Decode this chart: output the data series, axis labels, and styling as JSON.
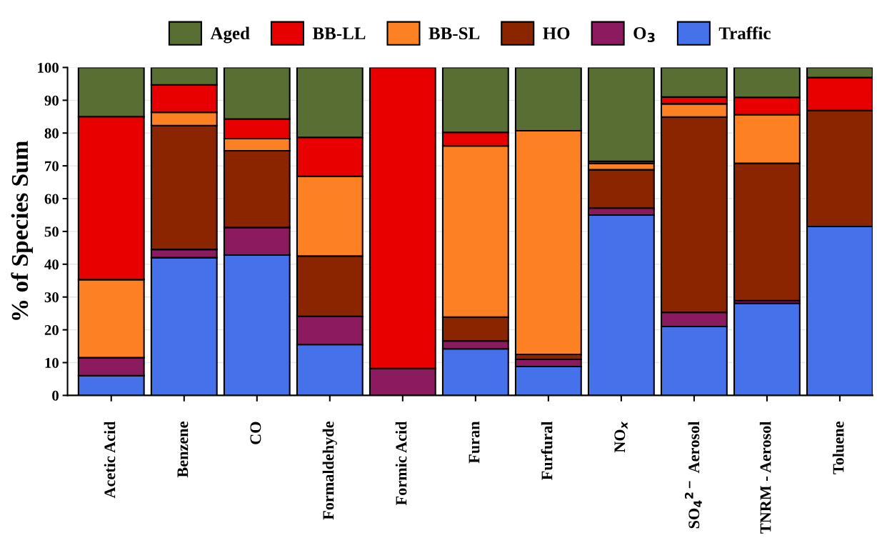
{
  "chart_data": {
    "type": "bar",
    "stacked": true,
    "ylabel": "% of Species Sum",
    "categories": [
      "Acetic Acid",
      "Benzene",
      "CO",
      "Formaldehyde",
      "Formic Acid",
      "Furan",
      "Furfural",
      "NO$_{x}$",
      "SO$_{4}$$^{2−}$ Aerosol",
      "TNRM - Aerosol",
      "Toluene"
    ],
    "series": [
      {
        "name": "Traffic",
        "color": "#4571ea",
        "values": [
          6,
          42,
          42.8,
          15.5,
          0,
          14.2,
          8.8,
          55.0,
          21.0,
          28.1,
          51.5
        ]
      },
      {
        "name": "O$_{3}$",
        "color": "#8b1a5e",
        "values": [
          5.5,
          2.5,
          8.4,
          8.6,
          8.2,
          2.4,
          2.2,
          2.1,
          4.3,
          0.8,
          0
        ]
      },
      {
        "name": "HO",
        "color": "#8a2500",
        "values": [
          0,
          37.8,
          23.4,
          18.4,
          0,
          7.3,
          1.5,
          11.7,
          59.6,
          41.9,
          35.4
        ]
      },
      {
        "name": "BB-SL",
        "color": "#fd8023",
        "values": [
          23.8,
          4,
          3.7,
          24.3,
          0,
          52.2,
          68.2,
          1.9,
          4.0,
          14.8,
          0
        ]
      },
      {
        "name": "BB-LL",
        "color": "#e80000",
        "values": [
          49.7,
          8.4,
          6,
          11.9,
          91.8,
          4.1,
          0,
          0.7,
          2.1,
          5.3,
          10.0
        ]
      },
      {
        "name": "Aged",
        "color": "#586e33",
        "values": [
          15,
          5.3,
          15.7,
          21.3,
          0,
          19.8,
          19.3,
          28.6,
          9.0,
          9.1,
          3.1
        ]
      }
    ],
    "ylim": [
      0,
      100
    ],
    "yticks": [
      0,
      10,
      20,
      30,
      40,
      50,
      60,
      70,
      80,
      90,
      100
    ],
    "grid": "y",
    "legend": "top"
  }
}
